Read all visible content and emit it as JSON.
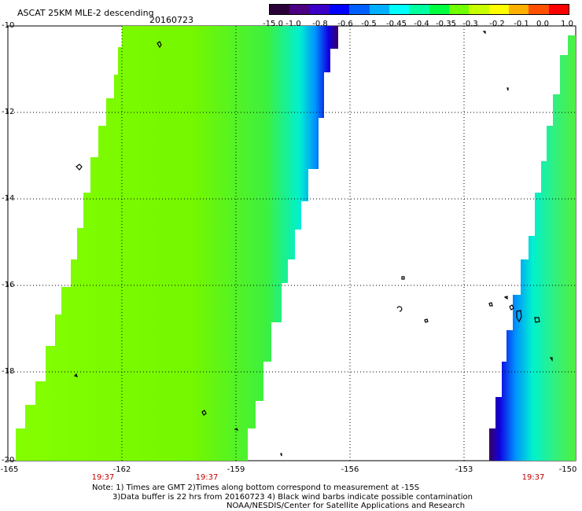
{
  "header": {
    "title": "ASCAT 25KM MLE-2 descending",
    "date": "20160723"
  },
  "colorbar": {
    "labels": [
      "-15.0",
      "-1.0",
      "-0.8",
      "-0.6",
      "-0.5",
      "-0.45",
      "-0.4",
      "-0.35",
      "-0.3",
      "-0.2",
      "-0.1",
      "0.0",
      "1.0"
    ],
    "colors": [
      "#2a0038",
      "#4b0082",
      "#3a00c8",
      "#0000ff",
      "#0060ff",
      "#00b0ff",
      "#00ffff",
      "#00ffa0",
      "#00ff40",
      "#70ff00",
      "#c8ff00",
      "#ffff00",
      "#ffb000",
      "#ff5000",
      "#ff0000"
    ]
  },
  "map": {
    "lat_labels": [
      "-10",
      "-12",
      "-14",
      "-16",
      "-18",
      "-20"
    ],
    "lon_labels": [
      "-165",
      "-162",
      "-159",
      "-156",
      "-153",
      "-150"
    ],
    "time_labels": [
      "19:37",
      "19:37",
      "19:37"
    ]
  },
  "notes": {
    "line1": "Note: 1) Times are GMT 2)Times along bottom correspond to measurement at -15S",
    "line2": "3)Data buffer is 22 hrs from 20160723 4) Black wind barbs indicate possible contamination",
    "line3": "NOAA/NESDIS/Center for Satellite Applications and Research"
  }
}
